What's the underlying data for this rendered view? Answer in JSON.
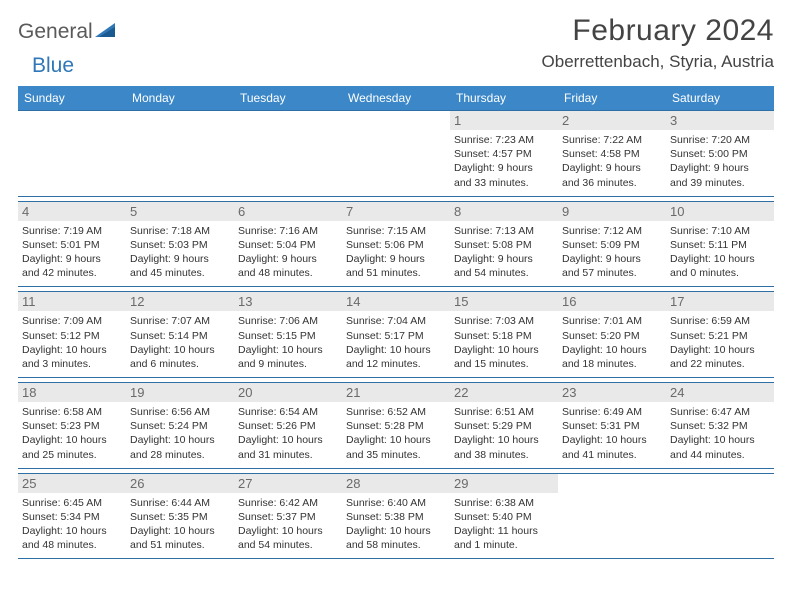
{
  "logo": {
    "word1": "General",
    "word2": "Blue"
  },
  "title": "February 2024",
  "location": "Oberrettenbach, Styria, Austria",
  "colors": {
    "header_bg": "#3b87c8",
    "rule": "#2f6fa8",
    "daynum_bg": "#e9e9e9",
    "text_muted": "#6a6a6a",
    "logo_gray": "#5a5a5a",
    "logo_blue": "#2f77b7"
  },
  "day_names": [
    "Sunday",
    "Monday",
    "Tuesday",
    "Wednesday",
    "Thursday",
    "Friday",
    "Saturday"
  ],
  "weeks": [
    [
      null,
      null,
      null,
      null,
      {
        "n": "1",
        "sunrise": "Sunrise: 7:23 AM",
        "sunset": "Sunset: 4:57 PM",
        "d1": "Daylight: 9 hours",
        "d2": "and 33 minutes."
      },
      {
        "n": "2",
        "sunrise": "Sunrise: 7:22 AM",
        "sunset": "Sunset: 4:58 PM",
        "d1": "Daylight: 9 hours",
        "d2": "and 36 minutes."
      },
      {
        "n": "3",
        "sunrise": "Sunrise: 7:20 AM",
        "sunset": "Sunset: 5:00 PM",
        "d1": "Daylight: 9 hours",
        "d2": "and 39 minutes."
      }
    ],
    [
      {
        "n": "4",
        "sunrise": "Sunrise: 7:19 AM",
        "sunset": "Sunset: 5:01 PM",
        "d1": "Daylight: 9 hours",
        "d2": "and 42 minutes."
      },
      {
        "n": "5",
        "sunrise": "Sunrise: 7:18 AM",
        "sunset": "Sunset: 5:03 PM",
        "d1": "Daylight: 9 hours",
        "d2": "and 45 minutes."
      },
      {
        "n": "6",
        "sunrise": "Sunrise: 7:16 AM",
        "sunset": "Sunset: 5:04 PM",
        "d1": "Daylight: 9 hours",
        "d2": "and 48 minutes."
      },
      {
        "n": "7",
        "sunrise": "Sunrise: 7:15 AM",
        "sunset": "Sunset: 5:06 PM",
        "d1": "Daylight: 9 hours",
        "d2": "and 51 minutes."
      },
      {
        "n": "8",
        "sunrise": "Sunrise: 7:13 AM",
        "sunset": "Sunset: 5:08 PM",
        "d1": "Daylight: 9 hours",
        "d2": "and 54 minutes."
      },
      {
        "n": "9",
        "sunrise": "Sunrise: 7:12 AM",
        "sunset": "Sunset: 5:09 PM",
        "d1": "Daylight: 9 hours",
        "d2": "and 57 minutes."
      },
      {
        "n": "10",
        "sunrise": "Sunrise: 7:10 AM",
        "sunset": "Sunset: 5:11 PM",
        "d1": "Daylight: 10 hours",
        "d2": "and 0 minutes."
      }
    ],
    [
      {
        "n": "11",
        "sunrise": "Sunrise: 7:09 AM",
        "sunset": "Sunset: 5:12 PM",
        "d1": "Daylight: 10 hours",
        "d2": "and 3 minutes."
      },
      {
        "n": "12",
        "sunrise": "Sunrise: 7:07 AM",
        "sunset": "Sunset: 5:14 PM",
        "d1": "Daylight: 10 hours",
        "d2": "and 6 minutes."
      },
      {
        "n": "13",
        "sunrise": "Sunrise: 7:06 AM",
        "sunset": "Sunset: 5:15 PM",
        "d1": "Daylight: 10 hours",
        "d2": "and 9 minutes."
      },
      {
        "n": "14",
        "sunrise": "Sunrise: 7:04 AM",
        "sunset": "Sunset: 5:17 PM",
        "d1": "Daylight: 10 hours",
        "d2": "and 12 minutes."
      },
      {
        "n": "15",
        "sunrise": "Sunrise: 7:03 AM",
        "sunset": "Sunset: 5:18 PM",
        "d1": "Daylight: 10 hours",
        "d2": "and 15 minutes."
      },
      {
        "n": "16",
        "sunrise": "Sunrise: 7:01 AM",
        "sunset": "Sunset: 5:20 PM",
        "d1": "Daylight: 10 hours",
        "d2": "and 18 minutes."
      },
      {
        "n": "17",
        "sunrise": "Sunrise: 6:59 AM",
        "sunset": "Sunset: 5:21 PM",
        "d1": "Daylight: 10 hours",
        "d2": "and 22 minutes."
      }
    ],
    [
      {
        "n": "18",
        "sunrise": "Sunrise: 6:58 AM",
        "sunset": "Sunset: 5:23 PM",
        "d1": "Daylight: 10 hours",
        "d2": "and 25 minutes."
      },
      {
        "n": "19",
        "sunrise": "Sunrise: 6:56 AM",
        "sunset": "Sunset: 5:24 PM",
        "d1": "Daylight: 10 hours",
        "d2": "and 28 minutes."
      },
      {
        "n": "20",
        "sunrise": "Sunrise: 6:54 AM",
        "sunset": "Sunset: 5:26 PM",
        "d1": "Daylight: 10 hours",
        "d2": "and 31 minutes."
      },
      {
        "n": "21",
        "sunrise": "Sunrise: 6:52 AM",
        "sunset": "Sunset: 5:28 PM",
        "d1": "Daylight: 10 hours",
        "d2": "and 35 minutes."
      },
      {
        "n": "22",
        "sunrise": "Sunrise: 6:51 AM",
        "sunset": "Sunset: 5:29 PM",
        "d1": "Daylight: 10 hours",
        "d2": "and 38 minutes."
      },
      {
        "n": "23",
        "sunrise": "Sunrise: 6:49 AM",
        "sunset": "Sunset: 5:31 PM",
        "d1": "Daylight: 10 hours",
        "d2": "and 41 minutes."
      },
      {
        "n": "24",
        "sunrise": "Sunrise: 6:47 AM",
        "sunset": "Sunset: 5:32 PM",
        "d1": "Daylight: 10 hours",
        "d2": "and 44 minutes."
      }
    ],
    [
      {
        "n": "25",
        "sunrise": "Sunrise: 6:45 AM",
        "sunset": "Sunset: 5:34 PM",
        "d1": "Daylight: 10 hours",
        "d2": "and 48 minutes."
      },
      {
        "n": "26",
        "sunrise": "Sunrise: 6:44 AM",
        "sunset": "Sunset: 5:35 PM",
        "d1": "Daylight: 10 hours",
        "d2": "and 51 minutes."
      },
      {
        "n": "27",
        "sunrise": "Sunrise: 6:42 AM",
        "sunset": "Sunset: 5:37 PM",
        "d1": "Daylight: 10 hours",
        "d2": "and 54 minutes."
      },
      {
        "n": "28",
        "sunrise": "Sunrise: 6:40 AM",
        "sunset": "Sunset: 5:38 PM",
        "d1": "Daylight: 10 hours",
        "d2": "and 58 minutes."
      },
      {
        "n": "29",
        "sunrise": "Sunrise: 6:38 AM",
        "sunset": "Sunset: 5:40 PM",
        "d1": "Daylight: 11 hours",
        "d2": "and 1 minute."
      },
      null,
      null
    ]
  ]
}
